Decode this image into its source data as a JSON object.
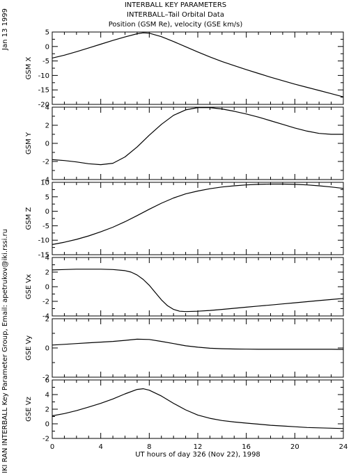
{
  "header": {
    "date": "Jan 13 1999",
    "title_lines": [
      "INTERBALL KEY PARAMETERS",
      "INTERBALL–Tail Orbital Data",
      "Position (GSM Re), velocity (GSE km/s)"
    ],
    "credit": "IKI RAN INTERBALL Key Parameter Group, Email: apetrukov@iki.rssi.ru"
  },
  "chart_data": {
    "type": "line",
    "title": "INTERBALL KEY PARAMETERS",
    "xlabel": "UT hours of day 326 (Nov 22), 1998",
    "xlim": [
      0,
      24
    ],
    "xticks": [
      "0",
      "4",
      "8",
      "12",
      "16",
      "20",
      "24"
    ],
    "line_color": "#000000",
    "panels": [
      {
        "ylabel": "GSM X",
        "ylim": [
          -20,
          5
        ],
        "yticks": [
          5,
          0,
          -5,
          -10,
          -15,
          -20
        ],
        "x": [
          0,
          1,
          2,
          3,
          4,
          5,
          6,
          7,
          7.5,
          8,
          9,
          10,
          11,
          12,
          13,
          14,
          15,
          16,
          17,
          18,
          19,
          20,
          21,
          22,
          23,
          24
        ],
        "y": [
          -4,
          -3,
          -1.8,
          -0.5,
          0.8,
          2.1,
          3.3,
          4.4,
          4.7,
          4.6,
          3.4,
          1.7,
          -0.1,
          -1.9,
          -3.6,
          -5.2,
          -6.6,
          -8.0,
          -9.3,
          -10.6,
          -11.8,
          -13.0,
          -14.1,
          -15.2,
          -16.3,
          -17.4
        ]
      },
      {
        "ylabel": "GSM Y",
        "ylim": [
          -4,
          4
        ],
        "yticks": [
          4,
          2,
          0,
          -2,
          -4
        ],
        "x": [
          0,
          1,
          2,
          3,
          4,
          5,
          6,
          7,
          8,
          9,
          10,
          11,
          12,
          13,
          14,
          15,
          16,
          17,
          18,
          19,
          20,
          21,
          22,
          23,
          24
        ],
        "y": [
          -1.8,
          -1.9,
          -2.05,
          -2.25,
          -2.35,
          -2.2,
          -1.5,
          -0.4,
          0.9,
          2.1,
          3.1,
          3.7,
          3.95,
          3.95,
          3.8,
          3.55,
          3.25,
          2.9,
          2.5,
          2.1,
          1.7,
          1.35,
          1.1,
          1.0,
          1.0
        ]
      },
      {
        "ylabel": "GSM Z",
        "ylim": [
          -15,
          10
        ],
        "yticks": [
          10,
          5,
          0,
          -5,
          -10,
          -15
        ],
        "x": [
          0,
          1,
          2,
          3,
          4,
          5,
          6,
          7,
          8,
          9,
          10,
          11,
          12,
          13,
          14,
          15,
          16,
          17,
          18,
          19,
          20,
          21,
          22,
          23,
          24
        ],
        "y": [
          -11.5,
          -10.7,
          -9.7,
          -8.5,
          -7.1,
          -5.5,
          -3.6,
          -1.5,
          0.7,
          2.8,
          4.6,
          6.0,
          7.0,
          7.8,
          8.4,
          8.8,
          9.1,
          9.3,
          9.4,
          9.4,
          9.3,
          9.1,
          8.8,
          8.4,
          7.9
        ]
      },
      {
        "ylabel": "GSE Vx",
        "ylim": [
          -4,
          4
        ],
        "yticks": [
          4,
          2,
          0,
          -2,
          -4
        ],
        "x": [
          0,
          1,
          2,
          3,
          4,
          5,
          6,
          6.5,
          7,
          7.5,
          8,
          8.5,
          9,
          9.5,
          10,
          10.5,
          11,
          12,
          13,
          14,
          15,
          16,
          17,
          18,
          19,
          20,
          21,
          22,
          23,
          24
        ],
        "y": [
          2.3,
          2.35,
          2.4,
          2.4,
          2.4,
          2.35,
          2.2,
          2.0,
          1.6,
          1.0,
          0.2,
          -0.8,
          -1.8,
          -2.6,
          -3.1,
          -3.35,
          -3.4,
          -3.35,
          -3.25,
          -3.1,
          -2.95,
          -2.8,
          -2.65,
          -2.5,
          -2.35,
          -2.2,
          -2.05,
          -1.9,
          -1.75,
          -1.6
        ]
      },
      {
        "ylabel": "GSE Vy",
        "ylim": [
          -2,
          2
        ],
        "yticks": [
          2,
          0,
          -2
        ],
        "x": [
          0,
          1,
          2,
          3,
          4,
          5,
          6,
          7,
          8,
          9,
          10,
          11,
          12,
          13,
          14,
          15,
          16,
          17,
          18,
          19,
          20,
          21,
          22,
          23,
          24
        ],
        "y": [
          0.2,
          0.25,
          0.3,
          0.35,
          0.4,
          0.45,
          0.52,
          0.6,
          0.58,
          0.45,
          0.3,
          0.15,
          0.05,
          -0.02,
          -0.05,
          -0.07,
          -0.08,
          -0.09,
          -0.09,
          -0.09,
          -0.09,
          -0.09,
          -0.09,
          -0.09,
          -0.1
        ]
      },
      {
        "ylabel": "GSE Vz",
        "ylim": [
          -2,
          6
        ],
        "yticks": [
          6,
          4,
          2,
          0,
          -2
        ],
        "x": [
          0,
          1,
          2,
          3,
          4,
          5,
          6,
          7,
          7.5,
          8,
          9,
          10,
          11,
          12,
          13,
          14,
          15,
          16,
          17,
          18,
          19,
          20,
          21,
          22,
          23,
          24
        ],
        "y": [
          1.1,
          1.4,
          1.8,
          2.3,
          2.8,
          3.4,
          4.1,
          4.7,
          4.8,
          4.6,
          3.8,
          2.8,
          1.9,
          1.2,
          0.75,
          0.45,
          0.25,
          0.1,
          -0.05,
          -0.2,
          -0.3,
          -0.4,
          -0.5,
          -0.55,
          -0.6,
          -0.65
        ]
      }
    ]
  }
}
